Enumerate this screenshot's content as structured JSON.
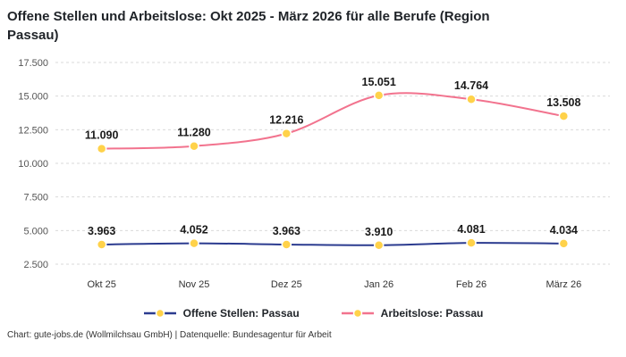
{
  "title": "Offene Stellen und Arbeitslose: Okt 2025 - März 2026 für alle Berufe (Region Passau)",
  "footer": "Chart: gute-jobs.de (Wollmilchsau GmbH) | Datenquelle: Bundesagentur für Arbeit",
  "chart_data": {
    "type": "line",
    "categories": [
      "Okt 25",
      "Nov 25",
      "Dez 25",
      "Jan 26",
      "Feb 26",
      "März 26"
    ],
    "series": [
      {
        "name": "Offene Stellen: Passau",
        "color": "#2b3b8f",
        "values": [
          3963,
          4052,
          3963,
          3910,
          4081,
          4034
        ],
        "labels": [
          "3.963",
          "4.052",
          "3.963",
          "3.910",
          "4.081",
          "4.034"
        ]
      },
      {
        "name": "Arbeitslose: Passau",
        "color": "#f2738e",
        "values": [
          11090,
          11280,
          12216,
          15051,
          14764,
          13508
        ],
        "labels": [
          "11.090",
          "11.280",
          "12.216",
          "15.051",
          "14.764",
          "13.508"
        ]
      }
    ],
    "ylim": [
      2500,
      17500
    ],
    "yticks": [
      2500,
      5000,
      7500,
      10000,
      12500,
      15000,
      17500
    ],
    "ytick_labels": [
      "2.500",
      "5.000",
      "7.500",
      "10.000",
      "12.500",
      "15.000",
      "17.500"
    ],
    "marker_fill": "#ffd24a",
    "grid_color": "#d9d9d9",
    "legend_position": "bottom",
    "grid": "horizontal-dashed"
  }
}
